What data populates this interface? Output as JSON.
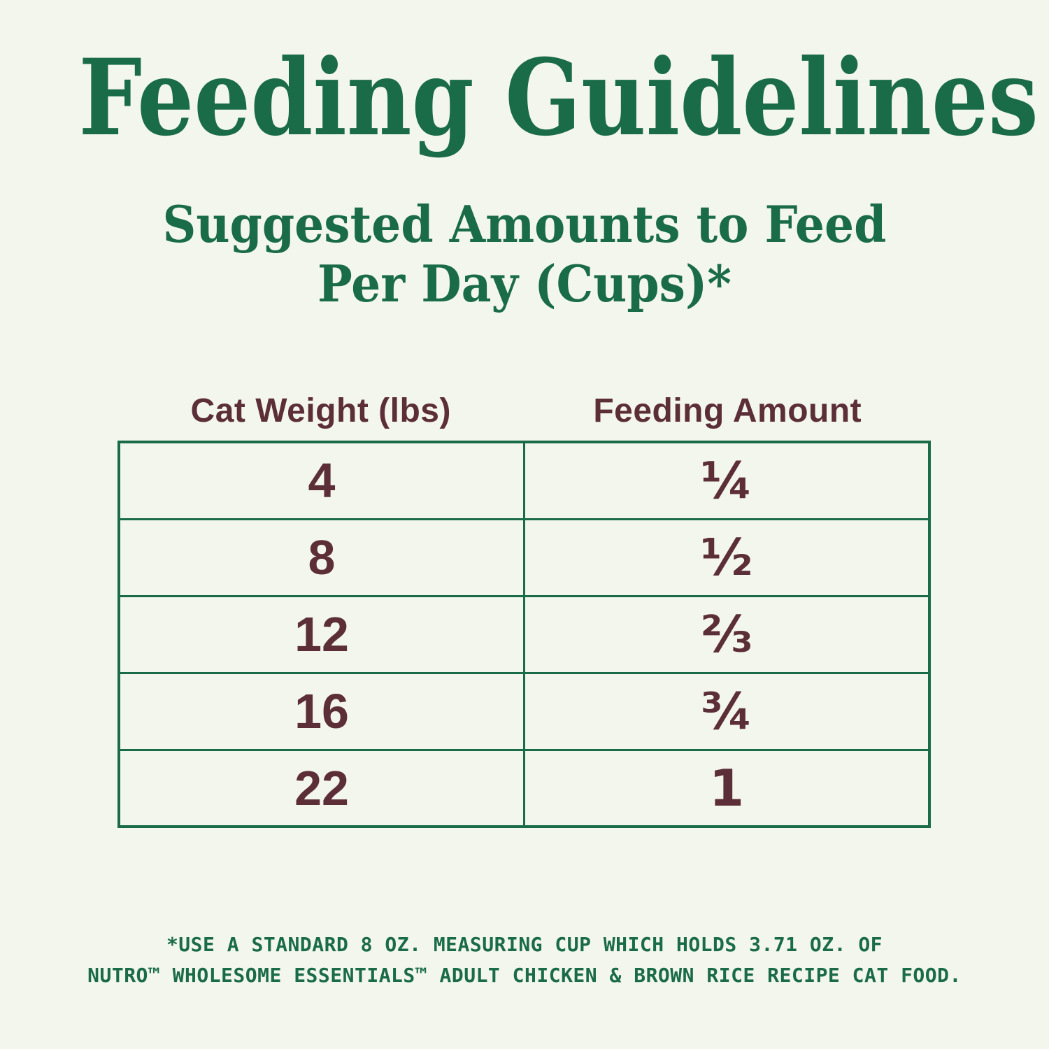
{
  "title": "Feeding Guidelines",
  "subtitle": {
    "line1": "Suggested Amounts to Feed",
    "line2": "Per Day (Cups)*"
  },
  "chart_data": {
    "type": "table",
    "title": "Feeding Guidelines",
    "subtitle": "Suggested Amounts to Feed Per Day (Cups)*",
    "columns": [
      "Cat Weight (lbs)",
      "Feeding Amount"
    ],
    "rows": [
      [
        "4",
        "¼"
      ],
      [
        "8",
        "½"
      ],
      [
        "12",
        "⅔"
      ],
      [
        "16",
        "¾"
      ],
      [
        "22",
        "1"
      ]
    ],
    "cat_weights_lbs": [
      4,
      8,
      12,
      16,
      22
    ],
    "feeding_amounts_cups": [
      0.25,
      0.5,
      0.667,
      0.75,
      1
    ]
  },
  "footnote": {
    "line1": "*USE A STANDARD 8 OZ. MEASURING CUP WHICH HOLDS 3.71 OZ. OF",
    "line2": "NUTRO™ WHOLESOME ESSENTIALS™ ADULT CHICKEN & BROWN RICE RECIPE CAT FOOD."
  },
  "colors": {
    "background": "#f3f6ec",
    "green": "#1a6b47",
    "maroon": "#5c2e38"
  }
}
